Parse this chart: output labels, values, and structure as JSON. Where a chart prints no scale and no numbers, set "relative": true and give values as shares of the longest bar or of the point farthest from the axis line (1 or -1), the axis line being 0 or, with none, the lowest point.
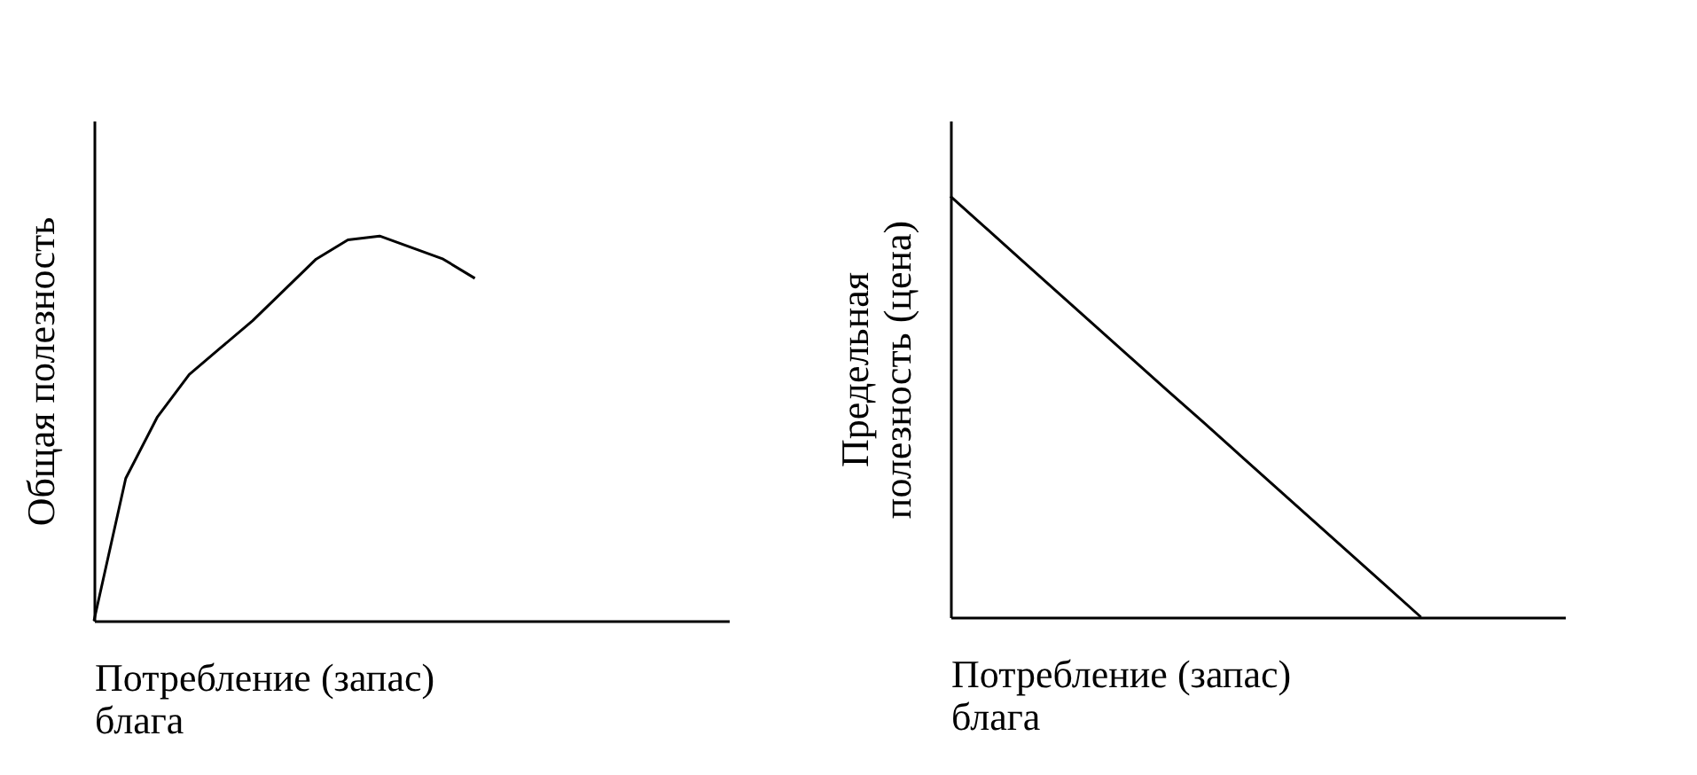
{
  "chart_data": [
    {
      "type": "line",
      "relative": true,
      "ylabel": "Общая полезность",
      "xlabel": "Потребление (запас)\nблага",
      "categories": [
        null,
        null,
        null,
        null,
        null,
        null,
        null,
        null,
        null,
        null,
        null,
        null,
        null,
        null,
        null,
        null,
        null,
        null,
        null,
        null,
        null
      ],
      "series": [
        {
          "color": "#000000",
          "values": [
            0,
            0.37,
            0.53,
            0.64,
            0.71,
            0.78,
            0.86,
            0.94,
            0.99,
            1,
            0.97,
            0.94,
            0.89,
            null,
            null,
            null,
            null,
            null,
            null,
            null,
            null
          ]
        }
      ],
      "grid": false,
      "legend": false,
      "marker": "none",
      "line_style": "solid"
    },
    {
      "type": "line",
      "relative": true,
      "ylabel": "Предельная\nполезность (цена)",
      "xlabel": "Потребление (запас)\nблага",
      "categories": [
        null,
        null,
        null,
        null,
        null,
        null,
        null,
        null,
        null,
        null,
        null,
        null,
        null,
        null,
        null,
        null,
        null,
        null
      ],
      "series": [
        {
          "color": "#000000",
          "values": [
            1,
            0.923,
            0.846,
            0.769,
            0.692,
            0.615,
            0.538,
            0.462,
            0.385,
            0.308,
            0.231,
            0.154,
            0.077,
            0,
            null,
            null,
            null,
            null
          ]
        }
      ],
      "grid": false,
      "legend": false,
      "marker": "none",
      "line_style": "solid"
    }
  ]
}
